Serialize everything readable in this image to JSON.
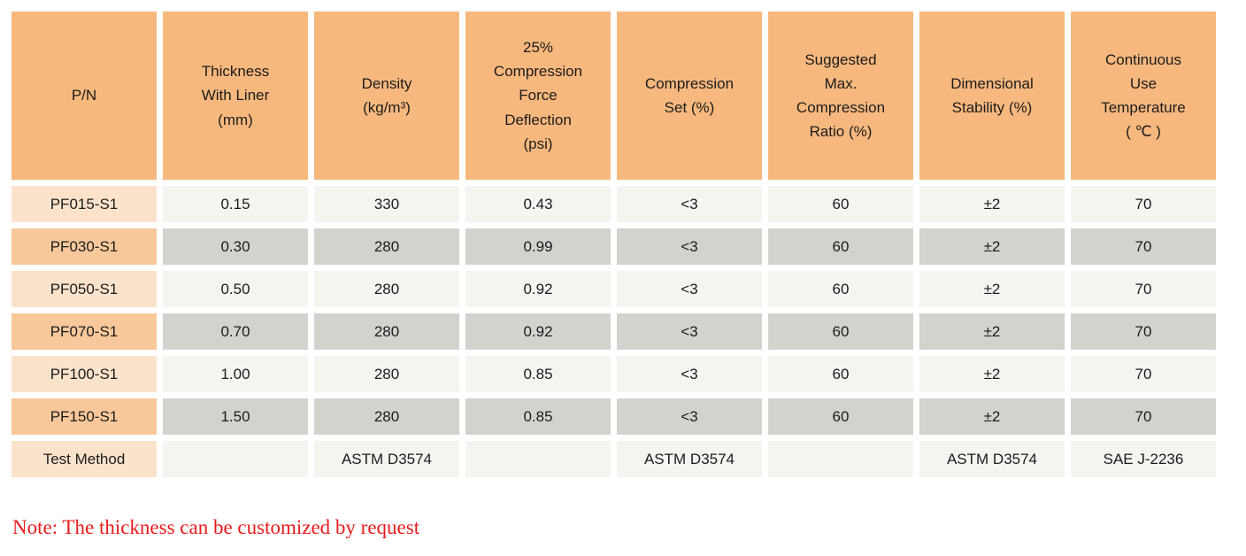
{
  "table": {
    "columns": [
      {
        "key": "pn",
        "label": "P/N"
      },
      {
        "key": "thickness",
        "label": "Thickness\nWith Liner\n(mm)"
      },
      {
        "key": "density",
        "label": "Density\n(kg/m³)"
      },
      {
        "key": "cfd",
        "label": "25%\nCompression\nForce\nDeflection\n(psi)"
      },
      {
        "key": "set",
        "label": "Compression\nSet (%)"
      },
      {
        "key": "ratio",
        "label": "Suggested\nMax.\nCompression\nRatio (%)"
      },
      {
        "key": "stability",
        "label": "Dimensional\nStability (%)"
      },
      {
        "key": "temp",
        "label": "Continuous\nUse\nTemperature\n( ℃ )"
      }
    ],
    "rows": [
      {
        "shade": "light",
        "cells": [
          "PF015-S1",
          "0.15",
          "330",
          "0.43",
          "<3",
          "60",
          "±2",
          "70"
        ]
      },
      {
        "shade": "dark",
        "cells": [
          "PF030-S1",
          "0.30",
          "280",
          "0.99",
          "<3",
          "60",
          "±2",
          "70"
        ]
      },
      {
        "shade": "light",
        "cells": [
          "PF050-S1",
          "0.50",
          "280",
          "0.92",
          "<3",
          "60",
          "±2",
          "70"
        ]
      },
      {
        "shade": "dark",
        "cells": [
          "PF070-S1",
          "0.70",
          "280",
          "0.92",
          "<3",
          "60",
          "±2",
          "70"
        ]
      },
      {
        "shade": "light",
        "cells": [
          "PF100-S1",
          "1.00",
          "280",
          "0.85",
          "<3",
          "60",
          "±2",
          "70"
        ]
      },
      {
        "shade": "dark",
        "cells": [
          "PF150-S1",
          "1.50",
          "280",
          "0.85",
          "<3",
          "60",
          "±2",
          "70"
        ]
      },
      {
        "shade": "light",
        "cells": [
          "Test Method",
          "",
          "ASTM D3574",
          "",
          "ASTM D3574",
          "",
          "ASTM D3574",
          "SAE J-2236"
        ]
      }
    ]
  },
  "note": "Note: The thickness can be customized by request",
  "colors": {
    "header_orange": "#f7b87e",
    "pn_light_peach": "#fbe3cb",
    "pn_dark_peach": "#f8c89b",
    "cell_light_gray": "#f4f4f1",
    "cell_dark_gray": "#d2d2ce",
    "note_red": "#e81c1c",
    "text": "#1c1c1c"
  }
}
